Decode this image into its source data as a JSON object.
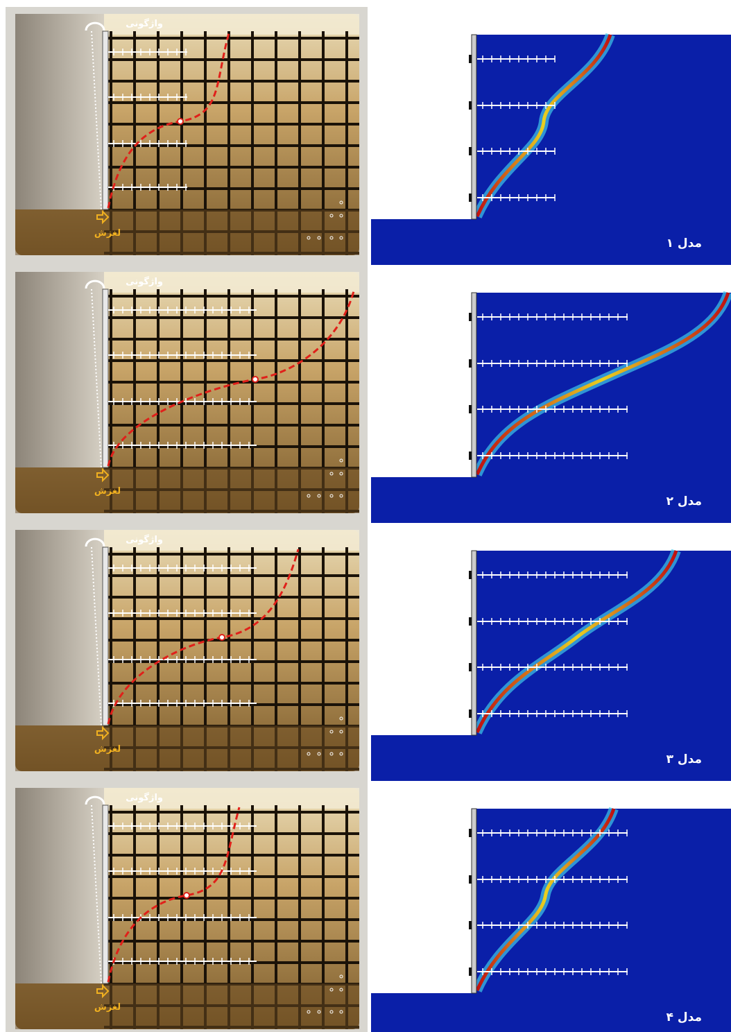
{
  "panels": [
    {
      "overturn": "واژگونی",
      "slide": "لغزش",
      "model": "مدل ۱"
    },
    {
      "overturn": "واژگونی",
      "slide": "لغزش",
      "model": "مدل ۲"
    },
    {
      "overturn": "واژگونی",
      "slide": "لغزش",
      "model": "مدل ۳"
    },
    {
      "overturn": "واژگونی",
      "slide": "لغزش",
      "model": "مدل ۴"
    }
  ]
}
